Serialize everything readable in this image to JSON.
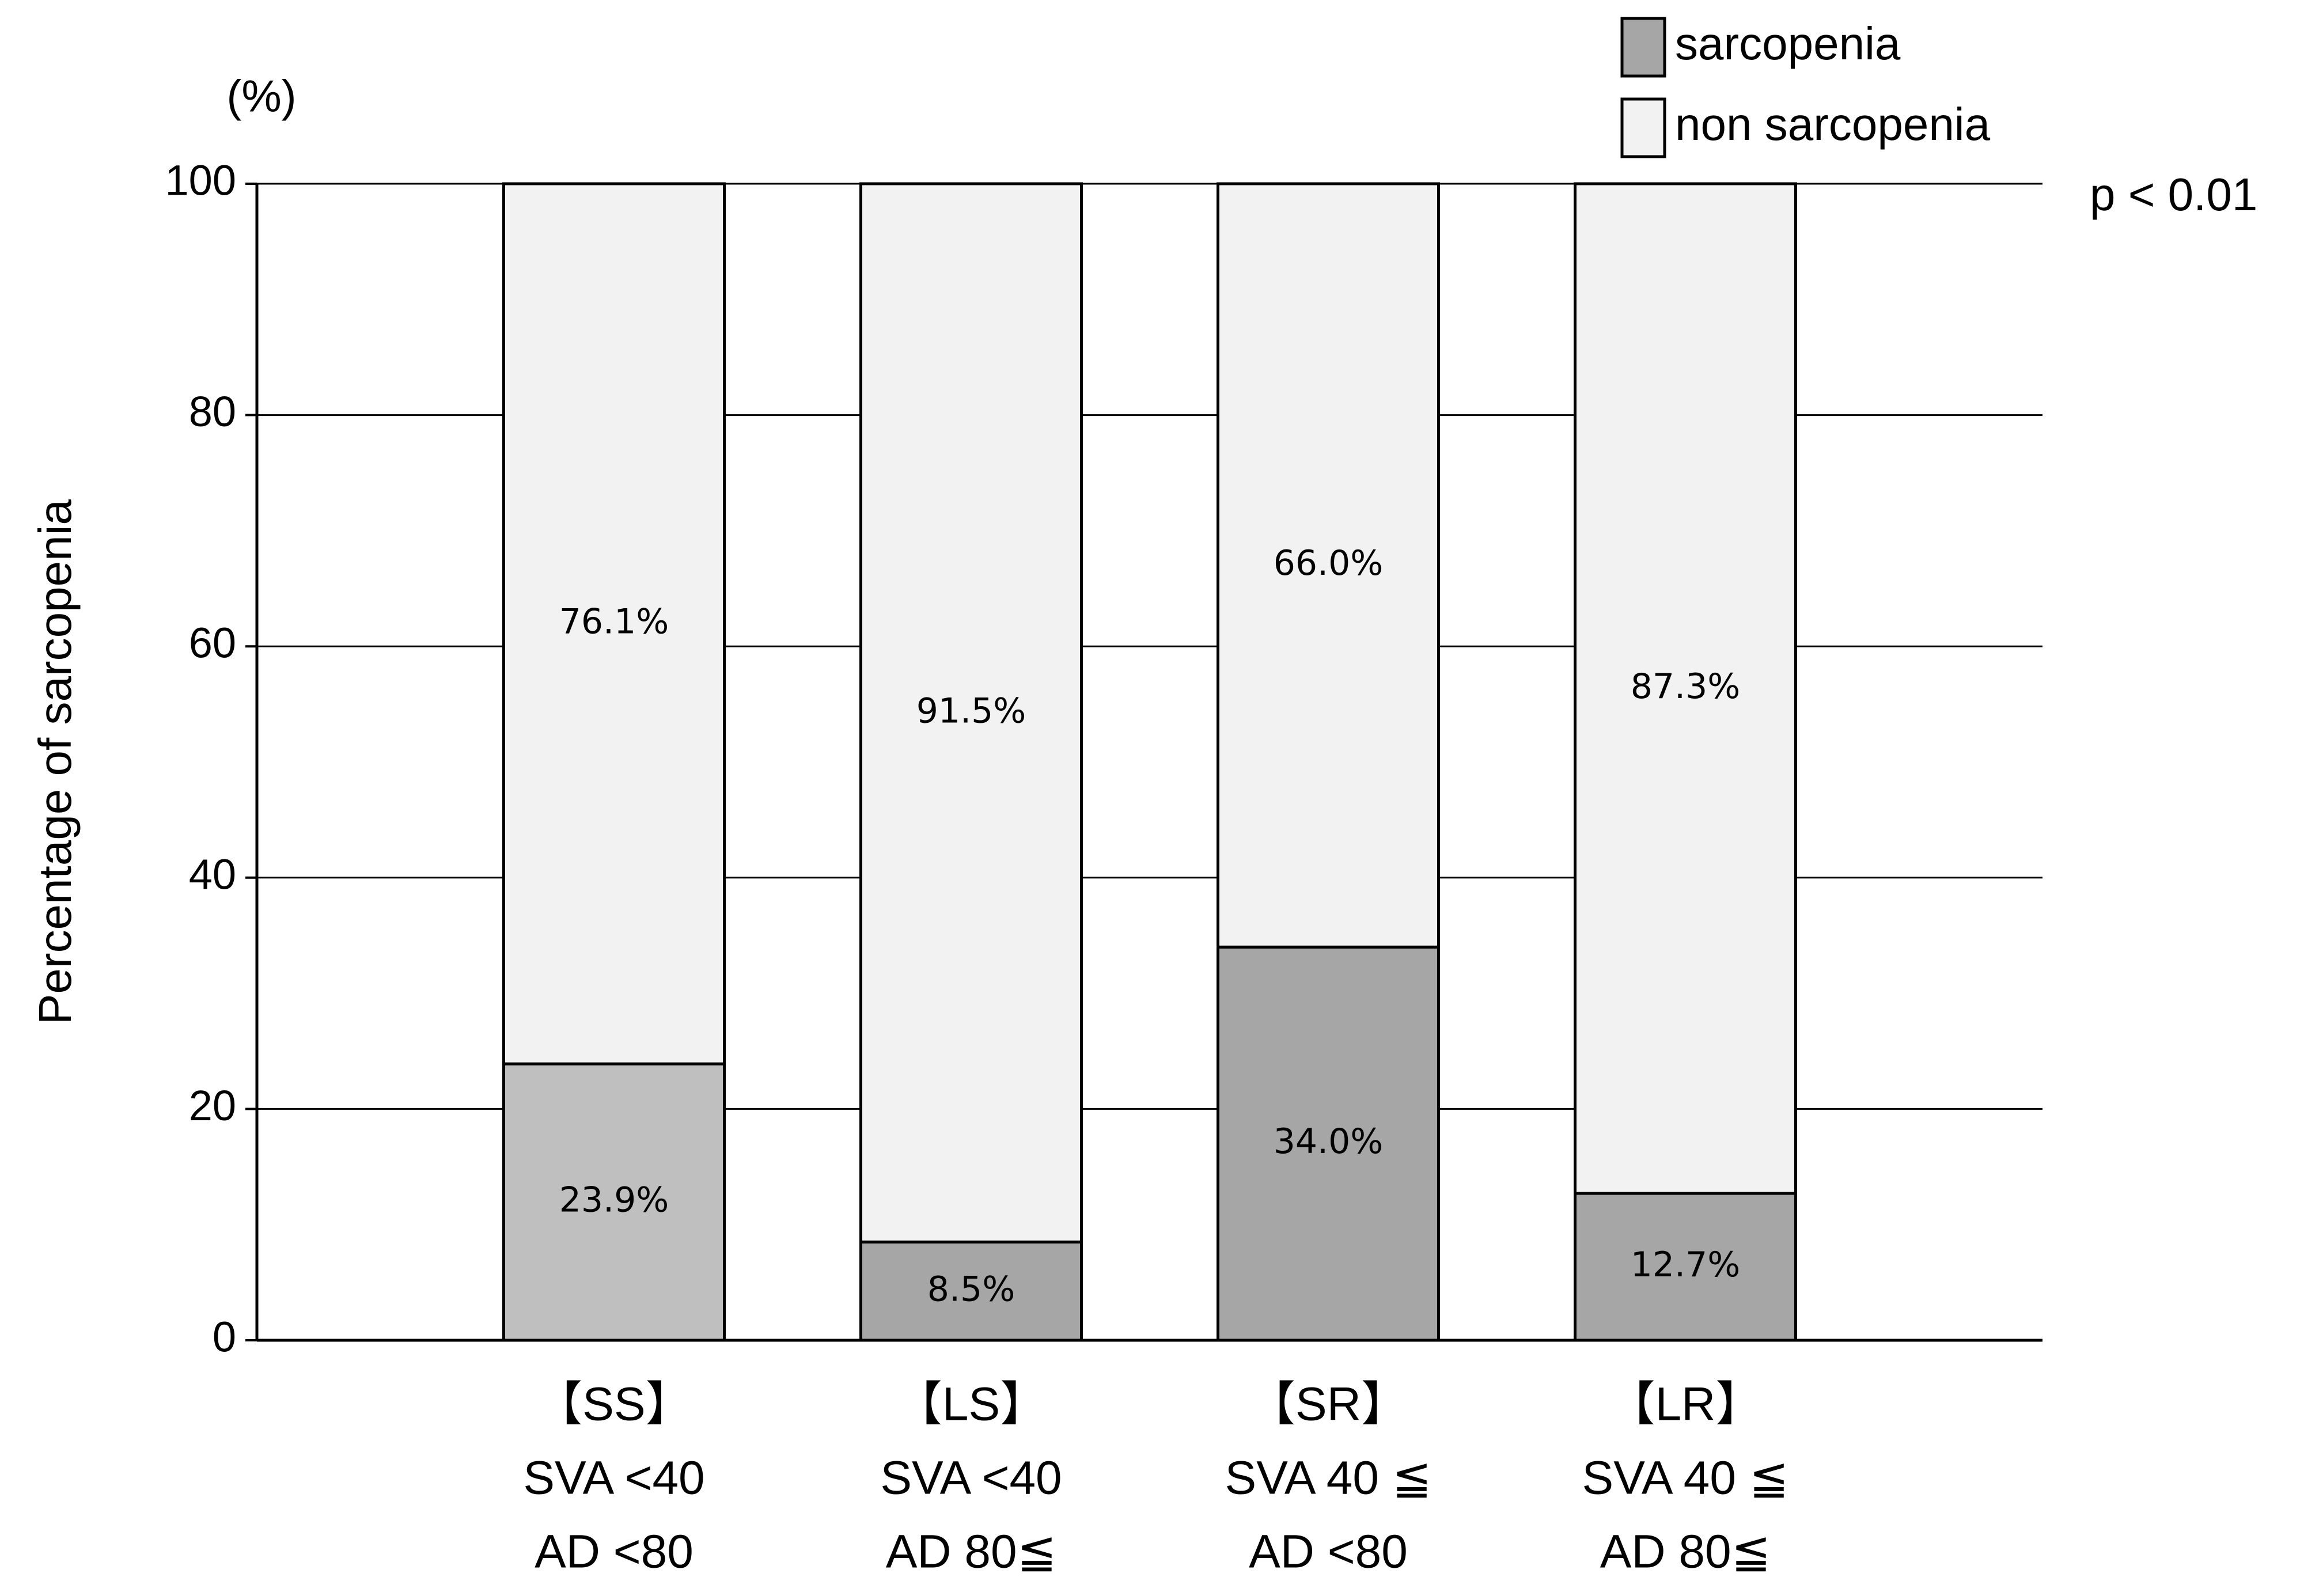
{
  "chart_data": {
    "type": "stacked_bar",
    "y_label": "Percentage of sarcopenia",
    "unit_label": "(%)",
    "annotation": "p < 0.01",
    "categories": [
      [
        "【SS】",
        "SVA <40",
        "AD <80"
      ],
      [
        "【LS】",
        "SVA <40",
        "AD 80≦"
      ],
      [
        "【SR】",
        "SVA 40 ≦",
        "AD <80"
      ],
      [
        "【LR】",
        "SVA 40 ≦",
        "AD 80≦"
      ]
    ],
    "series": [
      {
        "name": "sarcopenia",
        "color": "#a6a6a6",
        "colors": [
          "#bfbfbf",
          "#a6a6a6",
          "#a6a6a6",
          "#a6a6a6"
        ],
        "values": [
          23.9,
          8.5,
          34.0,
          12.7
        ],
        "value_labels": [
          "23.9%",
          "8.5%",
          "34.0%",
          "12.7%"
        ]
      },
      {
        "name": "non sarcopenia",
        "color": "#f2f2f2",
        "values": [
          76.1,
          91.5,
          66.0,
          87.3
        ],
        "value_labels": [
          "76.1%",
          "91.5%",
          "66.0%",
          "87.3%"
        ]
      }
    ],
    "ylim": [
      0,
      100
    ],
    "yticks": [
      0,
      20,
      40,
      60,
      80,
      100
    ],
    "grid": true,
    "legend": "top-right"
  }
}
